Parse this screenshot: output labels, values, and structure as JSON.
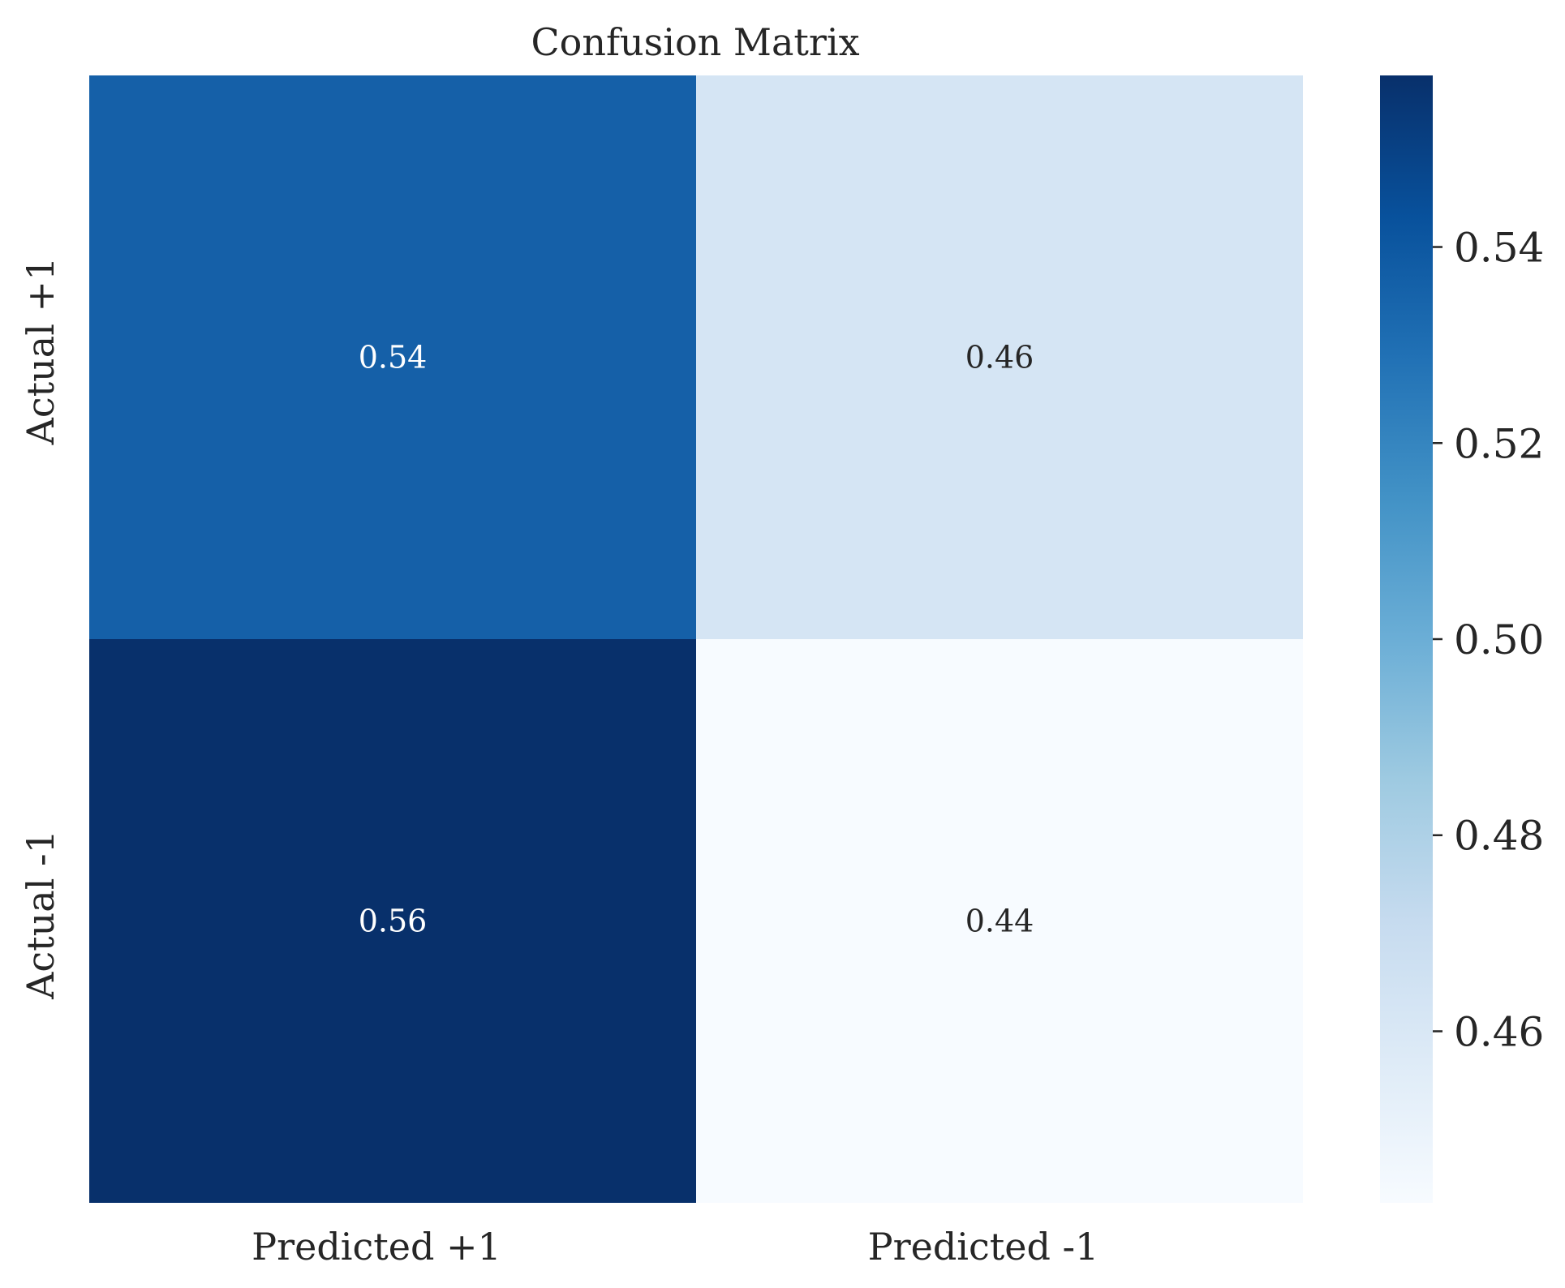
{
  "chart_data": {
    "type": "heatmap",
    "title": "Confusion Matrix",
    "x_categories": [
      "Predicted +1",
      "Predicted -1"
    ],
    "y_categories": [
      "Actual +1",
      "Actual -1"
    ],
    "values": [
      [
        0.54,
        0.46
      ],
      [
        0.56,
        0.44
      ]
    ],
    "value_labels": [
      [
        "0.54",
        "0.46"
      ],
      [
        "0.56",
        "0.44"
      ]
    ],
    "colormap": "Blues",
    "colorbar": {
      "range": [
        0.4425,
        0.5575
      ],
      "ticks": [
        0.46,
        0.48,
        0.5,
        0.52,
        0.54
      ],
      "tick_labels": [
        "0.46",
        "0.48",
        "0.50",
        "0.52",
        "0.54"
      ]
    },
    "cell_colors": [
      [
        "#1560a8",
        "#d5e5f4"
      ],
      [
        "#08306b",
        "#f7fbff"
      ]
    ],
    "text_colors": {
      "dark_cell": "#ffffff",
      "light_cell": "#262626"
    }
  }
}
